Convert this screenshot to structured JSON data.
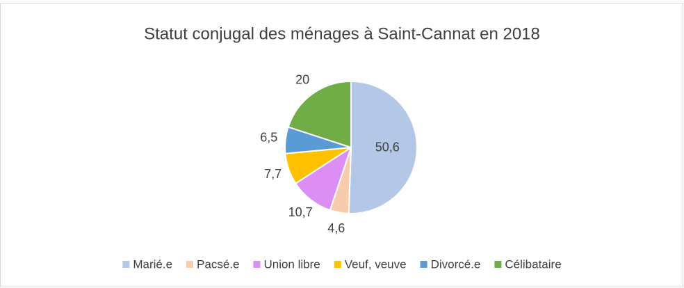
{
  "chart_data": {
    "type": "pie",
    "title": "Statut conjugal des ménages à Saint-Cannat en 2018",
    "categories": [
      "Marié.e",
      "Pacsé.e",
      "Union libre",
      "Veuf, veuve",
      "Divorcé.e",
      "Célibataire"
    ],
    "values": [
      50.6,
      4.6,
      10.7,
      7.7,
      6.5,
      20
    ],
    "value_labels": [
      "50,6",
      "4,6",
      "10,7",
      "7,7",
      "6,5",
      "20"
    ],
    "colors": [
      "#b4c7e7",
      "#f8cbad",
      "#dd8ef5",
      "#ffc000",
      "#5b9bd5",
      "#70ad47"
    ],
    "legend": "bottom"
  }
}
